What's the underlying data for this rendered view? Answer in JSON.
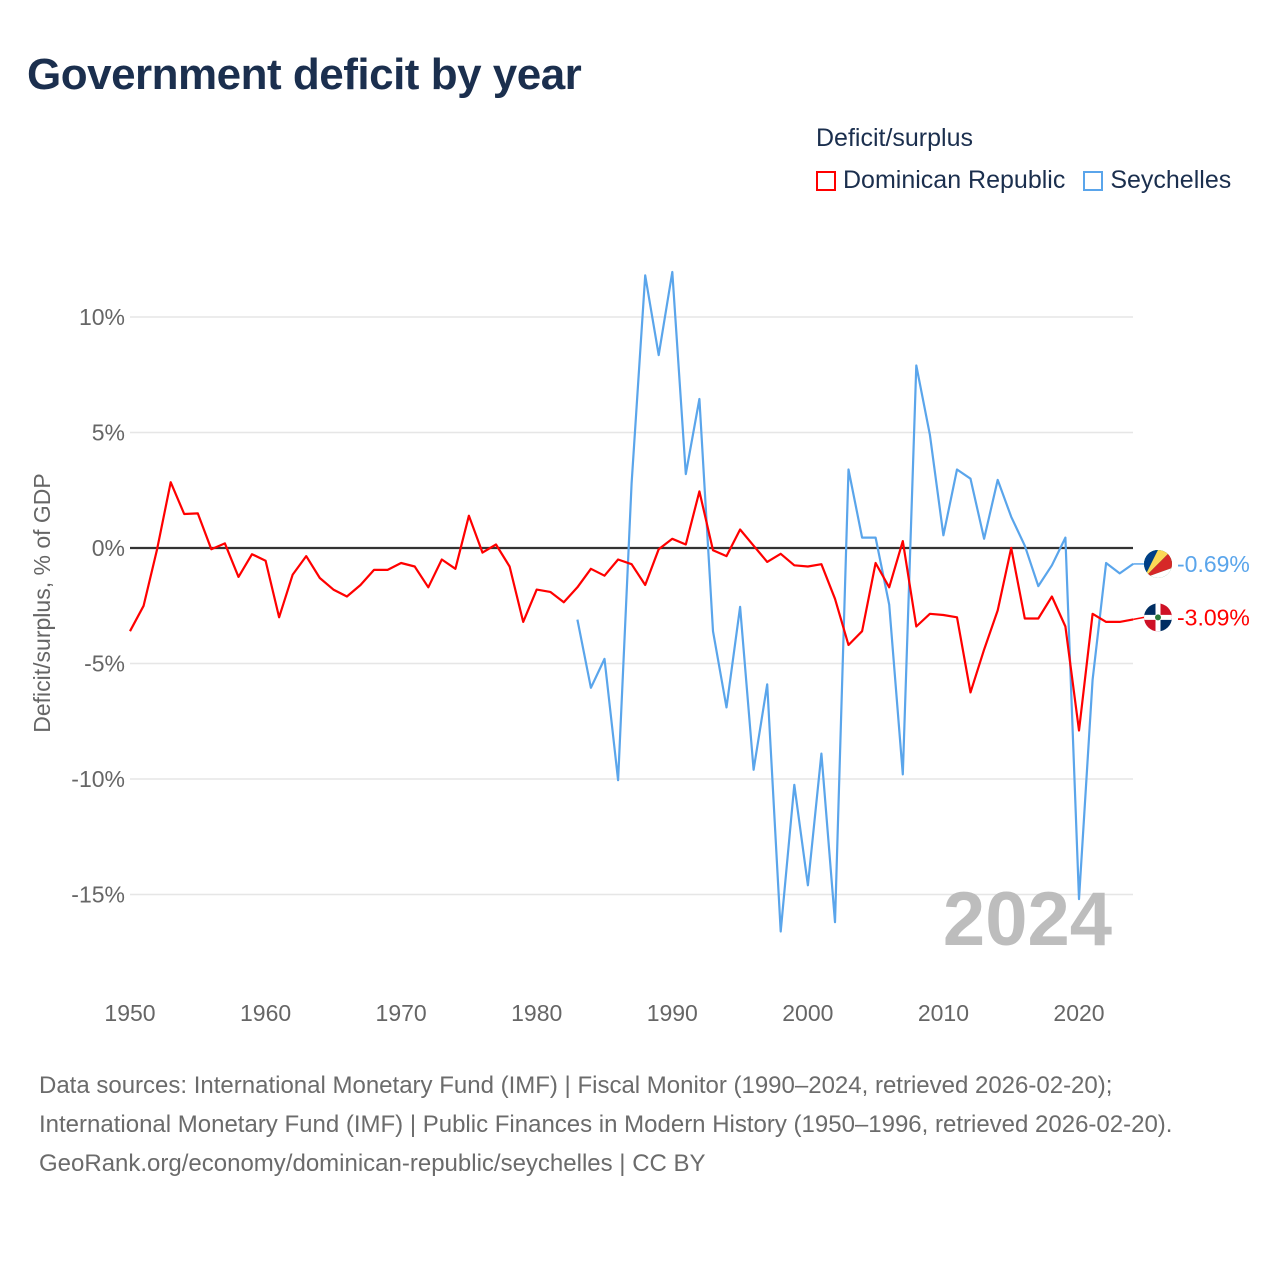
{
  "header": {
    "title": "Government deficit by year"
  },
  "legend": {
    "title": "Deficit/surplus"
  },
  "footer": {
    "sources": "Data sources: International Monetary Fund (IMF) | Fiscal Monitor (1990–2024, retrieved 2026-02-20); International Monetary Fund (IMF) | Public Finances in Modern History (1950–1996, retrieved 2026-02-20).",
    "attribution": "GeoRank.org/economy/dominican-republic/seychelles | CC BY"
  },
  "chart_data": {
    "type": "line",
    "title": "Government deficit by year",
    "xlabel": "",
    "ylabel": "Deficit/surplus, % of GDP",
    "xlim": [
      1950,
      2024
    ],
    "ylim": [
      -18,
      13
    ],
    "x_ticks": [
      1950,
      1960,
      1970,
      1980,
      1990,
      2000,
      2010,
      2020
    ],
    "x_tick_labels": [
      "1950",
      "1960",
      "1970",
      "1980",
      "1990",
      "2000",
      "2010",
      "2020"
    ],
    "y_ticks": [
      10,
      5,
      0,
      -5,
      -10,
      -15
    ],
    "y_tick_labels": [
      "10%",
      "5%",
      "0%",
      "-5%",
      "-10%",
      "-15%"
    ],
    "grid": true,
    "year_watermark": "2024",
    "legend_position": "top-right",
    "series": [
      {
        "name": "Dominican Republic",
        "color": "#ff0000",
        "end_label": "-3.09%",
        "start_year": 1950,
        "values": [
          -3.6,
          -2.5,
          -0.05,
          2.85,
          1.47,
          1.5,
          -0.05,
          0.2,
          -1.25,
          -0.27,
          -0.55,
          -3.0,
          -1.15,
          -0.35,
          -1.3,
          -1.8,
          -2.1,
          -1.6,
          -0.95,
          -0.95,
          -0.65,
          -0.8,
          -1.7,
          -0.5,
          -0.9,
          1.4,
          -0.2,
          0.15,
          -0.8,
          -3.2,
          -1.8,
          -1.9,
          -2.35,
          -1.7,
          -0.9,
          -1.2,
          -0.5,
          -0.7,
          -1.6,
          -0.05,
          0.4,
          0.15,
          2.45,
          -0.1,
          -0.35,
          0.8,
          0.1,
          -0.6,
          -0.25,
          -0.75,
          -0.8,
          -0.7,
          -2.2,
          -4.2,
          -3.6,
          -0.65,
          -1.7,
          0.3,
          -3.4,
          -2.85,
          -2.9,
          -3.0,
          -6.25,
          -4.4,
          -2.7,
          0.0,
          -3.05,
          -3.05,
          -2.1,
          -3.4,
          -7.9,
          -2.85,
          -3.2,
          -3.2,
          -3.09
        ]
      },
      {
        "name": "Seychelles",
        "color": "#5aa5eb",
        "end_label": "-0.69%",
        "start_year": 1983,
        "values": [
          -3.1,
          -6.05,
          -4.8,
          -10.05,
          2.8,
          11.8,
          8.35,
          11.95,
          3.2,
          6.45,
          -3.6,
          -6.9,
          -2.55,
          -9.6,
          -5.9,
          -16.6,
          -10.25,
          -14.6,
          -8.9,
          -16.2,
          3.4,
          0.45,
          0.45,
          -2.45,
          -9.8,
          7.9,
          4.9,
          0.55,
          3.4,
          3.0,
          0.4,
          2.95,
          1.35,
          0.1,
          -1.65,
          -0.75,
          0.45,
          -15.2,
          -5.7,
          -0.65,
          -1.1,
          -0.69
        ]
      }
    ]
  }
}
